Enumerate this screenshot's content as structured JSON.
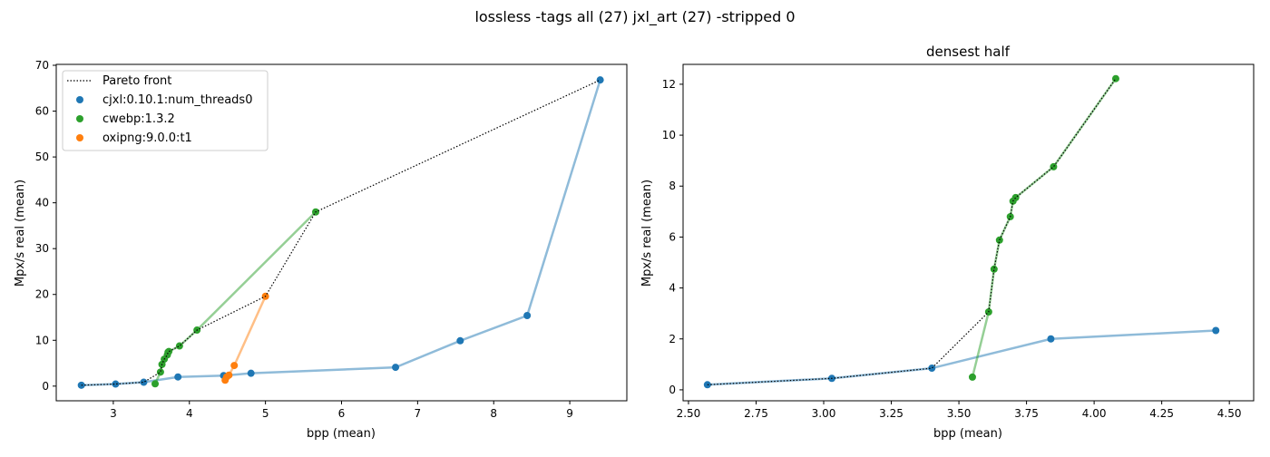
{
  "suptitle": "lossless -tags all (27) jxl_art (27) -stripped 0",
  "colors": {
    "cjxl": "#1f77b4",
    "cwebp": "#2ca02c",
    "oxipng": "#ff7f0e",
    "pareto": "#000000"
  },
  "chart_data": [
    {
      "type": "scatter",
      "title": "",
      "xlabel": "bpp (mean)",
      "ylabel": "Mpx/s real (mean)",
      "xlim": [
        2.25,
        9.75
      ],
      "ylim": [
        -3.2,
        70.2
      ],
      "xticks": [
        3,
        4,
        5,
        6,
        7,
        8,
        9
      ],
      "yticks": [
        0,
        10,
        20,
        30,
        40,
        50,
        60,
        70
      ],
      "grid": false,
      "legend": {
        "placement": "top-left",
        "entries": [
          "Pareto front",
          "cjxl:0.10.1:num_threads0",
          "cwebp:1.3.2",
          "oxipng:9.0.0:t1"
        ]
      },
      "series": [
        {
          "name": "cjxl:0.10.1:num_threads0",
          "color": "#1f77b4",
          "x": [
            2.58,
            3.03,
            3.4,
            3.85,
            4.45,
            4.81,
            6.71,
            7.56,
            8.44,
            9.4
          ],
          "y": [
            0.2,
            0.45,
            0.85,
            2.0,
            2.3,
            2.8,
            4.1,
            9.9,
            15.4,
            66.8
          ]
        },
        {
          "name": "cwebp:1.3.2",
          "color": "#2ca02c",
          "x": [
            3.55,
            3.62,
            3.64,
            3.67,
            3.71,
            3.72,
            3.73,
            3.87,
            4.1,
            5.66
          ],
          "y": [
            0.5,
            3.06,
            4.74,
            5.88,
            6.8,
            7.41,
            7.55,
            8.76,
            12.22,
            38.0
          ]
        },
        {
          "name": "oxipng:9.0.0:t1",
          "color": "#ff7f0e",
          "x": [
            4.47,
            4.49,
            4.52,
            4.59,
            5.0
          ],
          "y": [
            1.3,
            2.0,
            2.4,
            4.5,
            19.6
          ]
        }
      ],
      "pareto": {
        "name": "Pareto front",
        "x": [
          2.58,
          3.03,
          3.4,
          3.62,
          3.64,
          3.67,
          3.71,
          3.72,
          3.73,
          3.87,
          4.1,
          5.0,
          5.66,
          9.4
        ],
        "y": [
          0.2,
          0.45,
          0.85,
          3.06,
          4.74,
          5.88,
          6.8,
          7.41,
          7.55,
          8.76,
          12.22,
          19.6,
          38.0,
          66.8
        ]
      }
    },
    {
      "type": "scatter",
      "title": "densest half",
      "xlabel": "bpp (mean)",
      "ylabel": "Mpx/s real (mean)",
      "xlim": [
        2.48,
        4.59
      ],
      "ylim": [
        -0.43,
        12.78
      ],
      "xticks": [
        "2.50",
        "2.75",
        "3.00",
        "3.25",
        "3.50",
        "3.75",
        "4.00",
        "4.25",
        "4.50"
      ],
      "yticks": [
        0,
        2,
        4,
        6,
        8,
        10,
        12
      ],
      "grid": false,
      "series": [
        {
          "name": "cjxl:0.10.1:num_threads0",
          "color": "#1f77b4",
          "x": [
            2.57,
            3.03,
            3.4,
            3.84,
            4.45
          ],
          "y": [
            0.2,
            0.45,
            0.85,
            2.0,
            2.33
          ]
        },
        {
          "name": "cwebp:1.3.2",
          "color": "#2ca02c",
          "x": [
            3.55,
            3.61,
            3.63,
            3.65,
            3.69,
            3.7,
            3.71,
            3.85,
            4.08
          ],
          "y": [
            0.5,
            3.06,
            4.74,
            5.88,
            6.8,
            7.41,
            7.55,
            8.76,
            12.22
          ]
        }
      ],
      "pareto": {
        "x": [
          2.57,
          3.03,
          3.4,
          3.61,
          3.63,
          3.65,
          3.69,
          3.7,
          3.71,
          3.85,
          4.08
        ],
        "y": [
          0.2,
          0.45,
          0.85,
          3.06,
          4.74,
          5.88,
          6.8,
          7.41,
          7.55,
          8.76,
          12.22
        ]
      }
    }
  ]
}
